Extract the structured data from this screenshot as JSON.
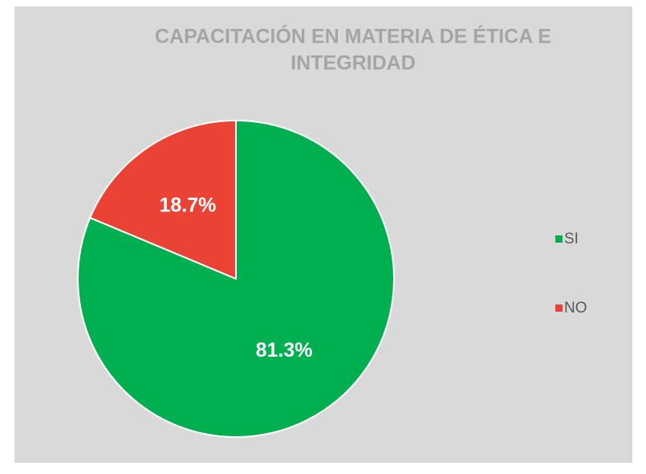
{
  "chart_data": {
    "type": "pie",
    "title": [
      "CAPACITACIÓN EN MATERIA DE ÉTICA E",
      "INTEGRIDAD"
    ],
    "categories": [
      "SI",
      "NO"
    ],
    "values": [
      81.3,
      18.7
    ],
    "value_labels": [
      "81.3%",
      "18.7%"
    ],
    "colors": [
      "#00b050",
      "#ea4235"
    ],
    "legend": "right"
  }
}
